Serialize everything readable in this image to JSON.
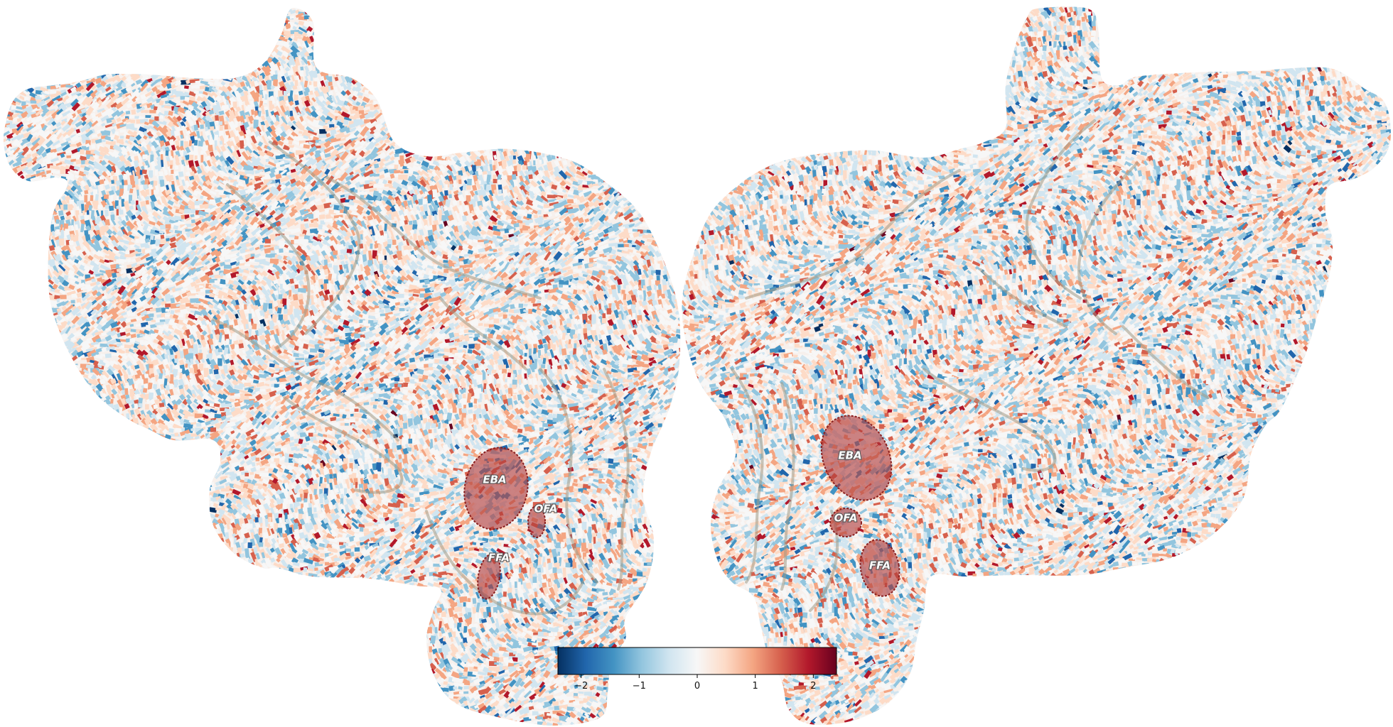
{
  "figure": {
    "type": "flatmap",
    "hemispheres": [
      "left",
      "right"
    ],
    "colormap": "RdBu_r",
    "pattern": "random noise"
  },
  "rois": {
    "left": [
      {
        "name": "EBA",
        "label": "EBA"
      },
      {
        "name": "OFA",
        "label": "OFA"
      },
      {
        "name": "FFA",
        "label": "FFA"
      }
    ],
    "right": [
      {
        "name": "EBA",
        "label": "EBA"
      },
      {
        "name": "OFA",
        "label": "OFA"
      },
      {
        "name": "FFA",
        "label": "FFA"
      }
    ]
  },
  "colorbar": {
    "vmin": -2.4,
    "vmax": 2.4,
    "ticks": [
      -2,
      -1,
      0,
      1,
      2
    ],
    "tick_labels": [
      "−2",
      "−1",
      "0",
      "1",
      "2"
    ],
    "colors": [
      "#053061",
      "#2166ac",
      "#4393c3",
      "#92c5de",
      "#d1e5f0",
      "#f7f7f7",
      "#fddbc7",
      "#f4a582",
      "#d6604d",
      "#b2182b",
      "#67001f"
    ]
  },
  "colors": {
    "roi_fill": "#b03a3a",
    "roi_outline": "#8a2020",
    "sulcus_line": "#a39a86",
    "cortex_base": "#f7f0ec"
  }
}
